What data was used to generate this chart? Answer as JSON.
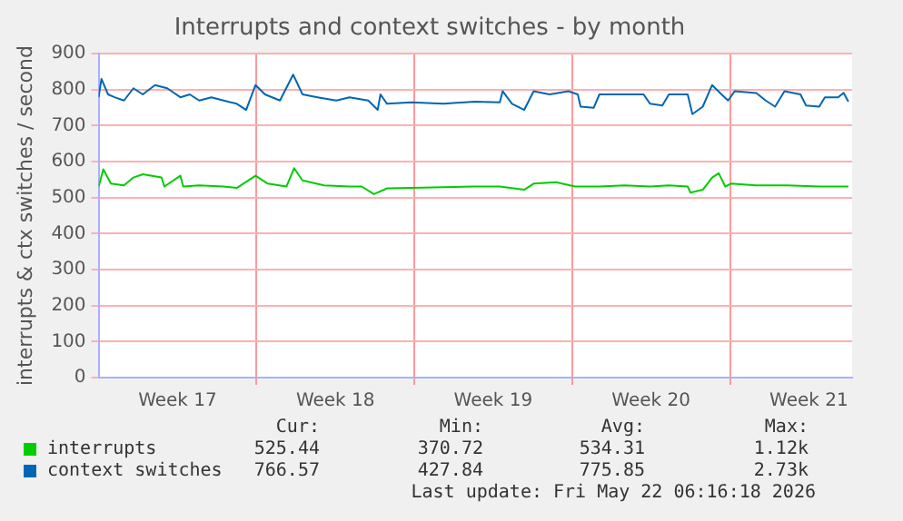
{
  "chart_data": {
    "type": "line",
    "title": "Interrupts and context switches - by month",
    "ylabel": "interrupts & ctx switches / second",
    "xlim": [
      "2026-04-19T00:00",
      "2026-05-22T10:00"
    ],
    "xticks": [
      {
        "value": "2026-04-22T12:00",
        "label": "Week 17"
      },
      {
        "value": "2026-04-26T00:00",
        "label": null
      },
      {
        "value": "2026-04-29T12:00",
        "label": "Week 18"
      },
      {
        "value": "2026-05-03T00:00",
        "label": null
      },
      {
        "value": "2026-05-06T12:00",
        "label": "Week 19"
      },
      {
        "value": "2026-05-10T00:00",
        "label": null
      },
      {
        "value": "2026-05-13T12:00",
        "label": "Week 20"
      },
      {
        "value": "2026-05-17T00:00",
        "label": null
      },
      {
        "value": "2026-05-20T12:00",
        "label": "Week 21"
      }
    ],
    "ylim": [
      0,
      900
    ],
    "yticks": [
      0,
      100,
      200,
      300,
      400,
      500,
      600,
      700,
      800,
      900
    ],
    "grid": true,
    "legend": "bottom",
    "marker": "none",
    "line_style": "solid",
    "series": [
      {
        "name": "interrupts",
        "color": "#00cc00",
        "x": [
          "2026-04-19T00:00",
          "2026-04-19T05:00",
          "2026-04-19T13:00",
          "2026-04-20T03:00",
          "2026-04-20T13:00",
          "2026-04-20T23:00",
          "2026-04-21T19:00",
          "2026-04-21T22:00",
          "2026-04-22T15:00",
          "2026-04-22T18:00",
          "2026-04-23T11:00",
          "2026-04-24T13:00",
          "2026-04-25T03:00",
          "2026-04-25T23:00",
          "2026-04-26T12:00",
          "2026-04-27T08:00",
          "2026-04-27T16:00",
          "2026-04-28T01:00",
          "2026-04-29T00:00",
          "2026-04-30T03:00",
          "2026-04-30T16:00",
          "2026-05-01T05:00",
          "2026-05-01T19:00",
          "2026-05-02T21:00",
          "2026-05-05T16:00",
          "2026-05-06T19:00",
          "2026-05-07T21:00",
          "2026-05-08T07:00",
          "2026-05-09T07:00",
          "2026-05-10T03:00",
          "2026-05-11T05:00",
          "2026-05-12T08:00",
          "2026-05-13T11:00",
          "2026-05-14T07:00",
          "2026-05-15T03:00",
          "2026-05-15T06:00",
          "2026-05-15T19:00",
          "2026-05-16T05:00",
          "2026-05-16T12:00",
          "2026-05-16T19:00",
          "2026-05-17T01:00",
          "2026-05-18T04:00",
          "2026-05-19T13:00",
          "2026-05-20T23:00",
          "2026-05-22T06:00"
        ],
        "values": [
          531,
          579,
          539,
          534,
          556,
          565,
          556,
          531,
          561,
          531,
          534,
          531,
          527,
          561,
          539,
          531,
          582,
          548,
          534,
          531,
          531,
          510,
          526,
          527,
          531,
          531,
          522,
          539,
          543,
          531,
          531,
          534,
          531,
          534,
          531,
          514,
          522,
          556,
          568,
          531,
          539,
          534,
          534,
          531,
          531
        ]
      },
      {
        "name": "context switches",
        "color": "#0066b3",
        "x": [
          "2026-04-19T00:00",
          "2026-04-19T03:00",
          "2026-04-19T10:00",
          "2026-04-19T17:00",
          "2026-04-20T03:00",
          "2026-04-20T13:00",
          "2026-04-20T23:00",
          "2026-04-21T12:00",
          "2026-04-22T01:00",
          "2026-04-22T15:00",
          "2026-04-23T01:00",
          "2026-04-23T11:00",
          "2026-04-24T00:00",
          "2026-04-24T13:00",
          "2026-04-25T03:00",
          "2026-04-25T13:00",
          "2026-04-25T23:00",
          "2026-04-26T09:00",
          "2026-04-27T01:00",
          "2026-04-27T15:00",
          "2026-04-28T01:00",
          "2026-04-28T17:00",
          "2026-04-29T13:00",
          "2026-04-30T03:00",
          "2026-04-30T23:00",
          "2026-05-01T09:00",
          "2026-05-01T12:00",
          "2026-05-01T19:00",
          "2026-05-02T21:00",
          "2026-05-04T07:00",
          "2026-05-05T16:00",
          "2026-05-06T19:00",
          "2026-05-06T22:00",
          "2026-05-07T08:00",
          "2026-05-07T21:00",
          "2026-05-08T07:00",
          "2026-05-09T00:00",
          "2026-05-09T20:00",
          "2026-05-10T06:00",
          "2026-05-10T09:00",
          "2026-05-10T23:00",
          "2026-05-11T05:00",
          "2026-05-12T15:00",
          "2026-05-13T04:00",
          "2026-05-13T11:00",
          "2026-05-14T00:00",
          "2026-05-14T07:00",
          "2026-05-15T03:00",
          "2026-05-15T08:00",
          "2026-05-15T19:00",
          "2026-05-16T05:00",
          "2026-05-16T15:00",
          "2026-05-16T22:00",
          "2026-05-17T05:00",
          "2026-05-18T04:00",
          "2026-05-18T14:00",
          "2026-05-19T00:00",
          "2026-05-19T10:00",
          "2026-05-20T03:00",
          "2026-05-20T09:00",
          "2026-05-20T23:00",
          "2026-05-21T05:00",
          "2026-05-21T19:00",
          "2026-05-22T01:00",
          "2026-05-22T06:00"
        ],
        "values": [
          779,
          830,
          787,
          779,
          770,
          804,
          787,
          813,
          804,
          779,
          787,
          770,
          779,
          770,
          761,
          744,
          813,
          787,
          770,
          842,
          787,
          779,
          770,
          779,
          770,
          744,
          787,
          761,
          765,
          761,
          767,
          765,
          796,
          761,
          744,
          796,
          787,
          796,
          787,
          753,
          750,
          787,
          787,
          787,
          761,
          756,
          787,
          787,
          732,
          753,
          813,
          787,
          770,
          796,
          791,
          770,
          753,
          796,
          787,
          756,
          753,
          779,
          779,
          791,
          767
        ]
      }
    ],
    "annotations": [
      "Cur:",
      "Min:",
      "Avg:",
      "Max:",
      "525.44",
      "370.72",
      "534.31",
      "1.12k",
      "766.57",
      "427.84",
      "775.85",
      "2.73k",
      "Last update: Fri May 22 06:16:18 2026"
    ]
  }
}
